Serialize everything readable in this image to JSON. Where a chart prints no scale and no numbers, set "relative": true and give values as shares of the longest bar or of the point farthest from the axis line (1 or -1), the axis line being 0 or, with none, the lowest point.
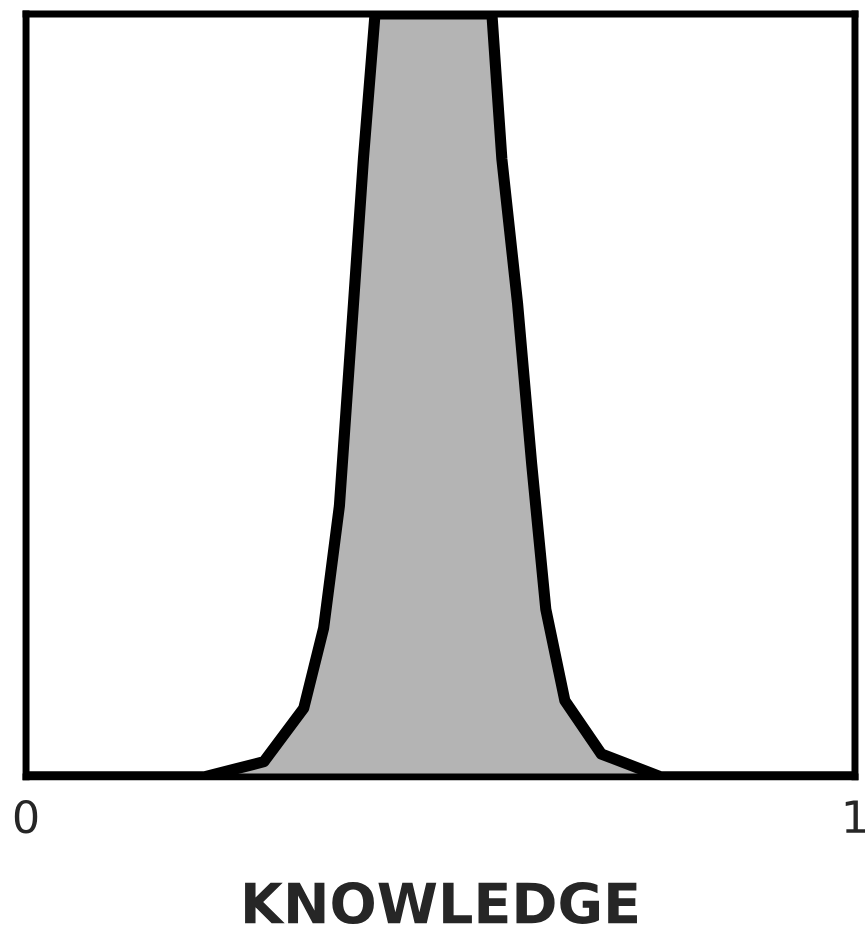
{
  "chart_data": {
    "type": "area",
    "relative": true,
    "xlabel": "KNOWLEDGE",
    "xlim": [
      0,
      1
    ],
    "xticks": [
      0,
      1
    ],
    "series": [
      {
        "color": "#b4b4b4",
        "x": [
          0,
          0.215,
          0.287,
          0.335,
          0.359,
          0.378,
          0.395,
          0.407,
          0.421,
          0.562,
          0.574,
          0.593,
          0.61,
          0.627,
          0.65,
          0.694,
          0.766,
          1
        ],
        "values": [
          0,
          0,
          0.02,
          0.09,
          0.195,
          0.355,
          0.62,
          0.81,
          1,
          1,
          0.81,
          0.62,
          0.41,
          0.22,
          0.1,
          0.03,
          0,
          0
        ]
      }
    ]
  }
}
